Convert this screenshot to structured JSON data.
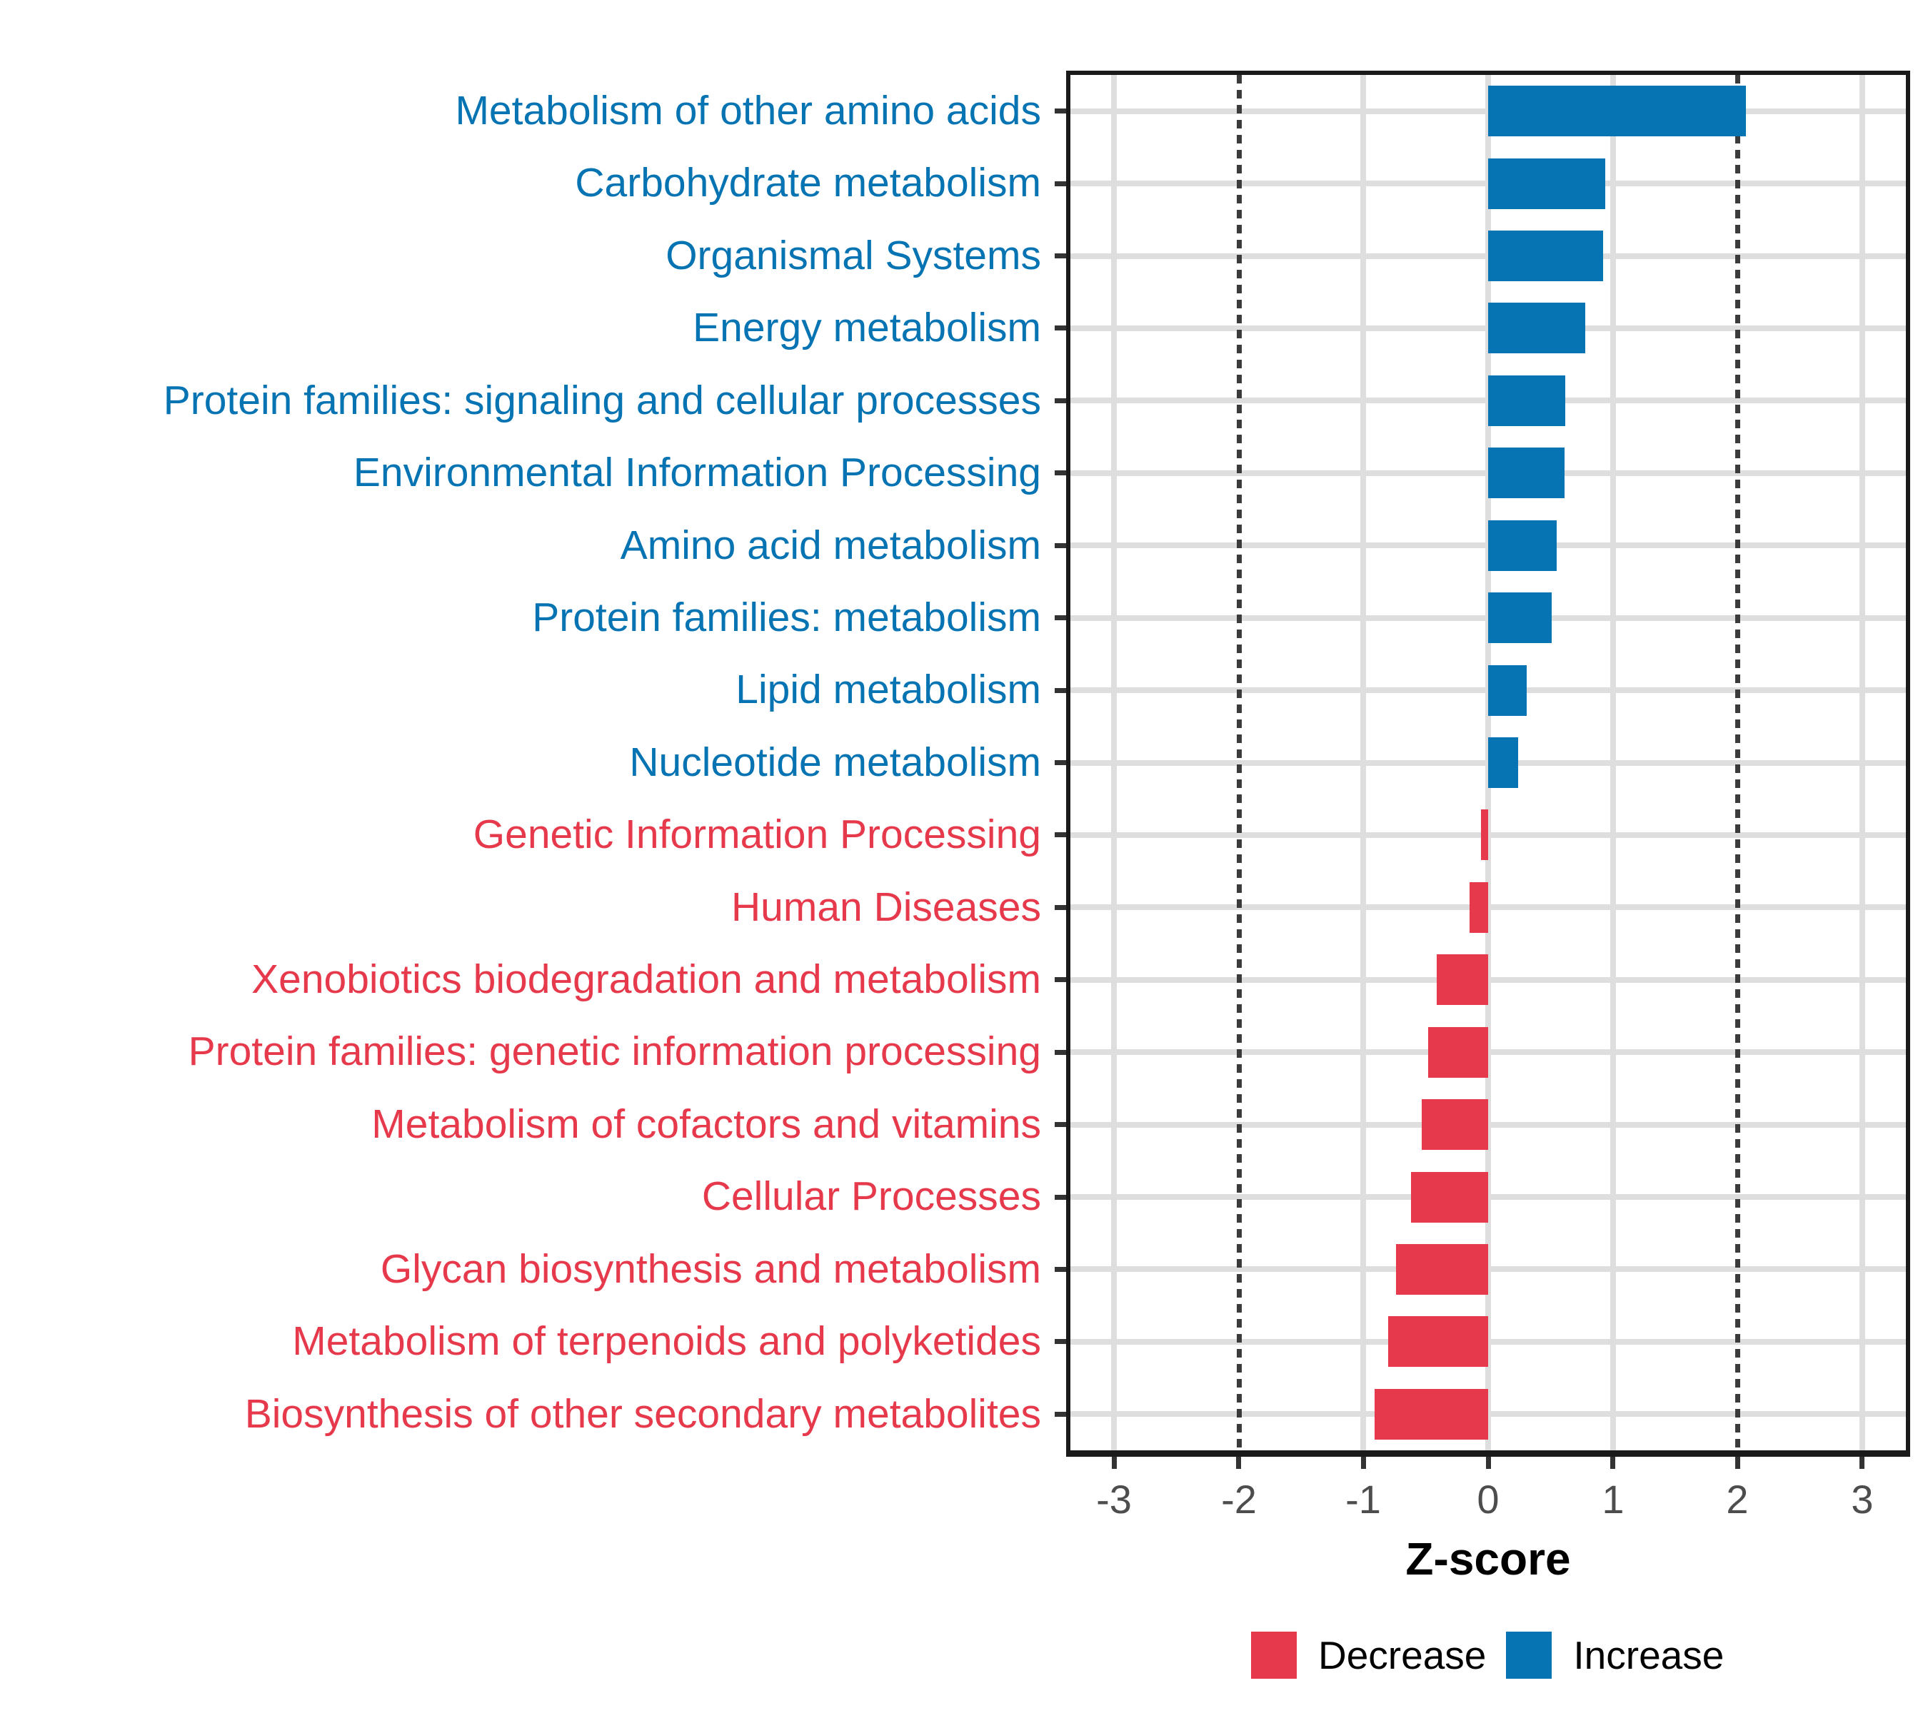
{
  "chart_data": {
    "type": "bar",
    "orientation": "horizontal",
    "xlabel": "Z-score",
    "ylabel": "",
    "xlim": [
      -3.35,
      3.35
    ],
    "x_ticks": [
      -3,
      -2,
      -1,
      0,
      1,
      2,
      3
    ],
    "x_tick_labels": [
      "-3",
      "-2",
      "-1",
      "0",
      "1",
      "2",
      "3"
    ],
    "grid": "major-on",
    "reference_lines": {
      "values": [
        -2,
        2
      ],
      "style": "dotted"
    },
    "bar_width_fraction": 0.7,
    "categories": [
      "Metabolism of other amino acids",
      "Carbohydrate metabolism",
      "Organismal Systems",
      "Energy metabolism",
      "Protein families: signaling and cellular processes",
      "Environmental Information Processing",
      "Amino acid metabolism",
      "Protein families: metabolism",
      "Lipid metabolism",
      "Nucleotide metabolism",
      "Genetic Information Processing",
      "Human Diseases",
      "Xenobiotics biodegradation and metabolism",
      "Protein families: genetic information processing",
      "Metabolism of cofactors and vitamins",
      "Cellular Processes",
      "Glycan biosynthesis and metabolism",
      "Metabolism of terpenoids and polyketides",
      "Biosynthesis of other secondary metabolites"
    ],
    "values": [
      2.07,
      0.94,
      0.92,
      0.78,
      0.62,
      0.61,
      0.55,
      0.51,
      0.31,
      0.24,
      -0.06,
      -0.15,
      -0.41,
      -0.48,
      -0.53,
      -0.62,
      -0.74,
      -0.8,
      -0.91
    ],
    "directions": [
      "Increase",
      "Increase",
      "Increase",
      "Increase",
      "Increase",
      "Increase",
      "Increase",
      "Increase",
      "Increase",
      "Increase",
      "Decrease",
      "Decrease",
      "Decrease",
      "Decrease",
      "Decrease",
      "Decrease",
      "Decrease",
      "Decrease",
      "Decrease"
    ],
    "legend": [
      {
        "label": "Decrease",
        "color": "#e6394b"
      },
      {
        "label": "Increase",
        "color": "#0673b2"
      }
    ],
    "legend_position": "bottom"
  },
  "colors": {
    "increase": "#0673b2",
    "decrease": "#e6394b",
    "grid": "#dedede",
    "reference_line": "#3b3b3b",
    "axis_tick_text": "#4d4d4d",
    "axis_title_text": "#000000",
    "panel_border": "#1a1a1a"
  }
}
